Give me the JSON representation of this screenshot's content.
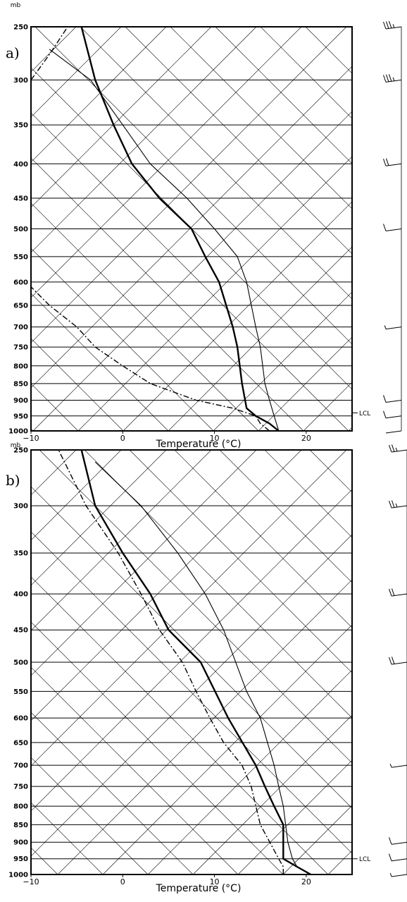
{
  "chart_data": [
    {
      "type": "line",
      "panel_label": "a)",
      "pressure_unit": "mb",
      "xlabel": "Temperature (°C)",
      "xlim": [
        -10,
        25
      ],
      "ylim": [
        1000,
        250
      ],
      "y_scale": "log",
      "x_ticks": [
        "−10",
        "0",
        "10",
        "20"
      ],
      "y_ticks": [
        "250",
        "300",
        "350",
        "400",
        "450",
        "500",
        "550",
        "600",
        "650",
        "700",
        "750",
        "800",
        "850",
        "900",
        "950",
        "1000"
      ],
      "lcl_label": "LCL",
      "lcl_pressure": 940,
      "series": [
        {
          "style": "thick-solid",
          "points": [
            [
              17,
              1000
            ],
            [
              16,
              975
            ],
            [
              14.5,
              950
            ],
            [
              13.5,
              925
            ],
            [
              13,
              850
            ],
            [
              12.5,
              750
            ],
            [
              12,
              700
            ],
            [
              10.5,
              600
            ],
            [
              9,
              550
            ],
            [
              7.5,
              500
            ],
            [
              4,
              450
            ],
            [
              1,
              400
            ],
            [
              -1,
              350
            ],
            [
              -3,
              300
            ],
            [
              -4.5,
              250
            ]
          ]
        },
        {
          "style": "thin-solid",
          "points": [
            [
              17,
              1000
            ],
            [
              16.5,
              950
            ],
            [
              16,
              900
            ],
            [
              15.5,
              850
            ],
            [
              15,
              750
            ],
            [
              14.5,
              700
            ],
            [
              13.5,
              600
            ],
            [
              12.5,
              550
            ],
            [
              10,
              500
            ],
            [
              7,
              450
            ],
            [
              3,
              400
            ],
            [
              0,
              350
            ],
            [
              -3.5,
              300
            ],
            [
              -8,
              270
            ]
          ]
        },
        {
          "style": "dash-dot",
          "points": [
            [
              16,
              1000
            ],
            [
              15,
              975
            ],
            [
              14.5,
              950
            ],
            [
              12,
              925
            ],
            [
              8,
              900
            ],
            [
              3,
              850
            ],
            [
              0,
              800
            ],
            [
              -3,
              750
            ],
            [
              -5,
              700
            ],
            [
              -8,
              650
            ],
            [
              -10,
              610
            ]
          ]
        },
        {
          "style": "dash-dot",
          "points": [
            [
              -10,
              300
            ],
            [
              -8,
              275
            ],
            [
              -6,
              250
            ]
          ]
        }
      ],
      "wind_barbs": [
        {
          "pressure": 250,
          "barbs": 3.5
        },
        {
          "pressure": 300,
          "barbs": 3.5
        },
        {
          "pressure": 400,
          "barbs": 2
        },
        {
          "pressure": 500,
          "barbs": 1
        },
        {
          "pressure": 700,
          "barbs": 0.5
        },
        {
          "pressure": 900,
          "barbs": 1
        },
        {
          "pressure": 950,
          "barbs": 1
        },
        {
          "pressure": 1000,
          "barbs": 0
        }
      ]
    },
    {
      "type": "line",
      "panel_label": "b)",
      "pressure_unit": "mb",
      "xlabel": "Temperature (°C)",
      "xlim": [
        -10,
        25
      ],
      "ylim": [
        1000,
        250
      ],
      "y_scale": "log",
      "x_ticks": [
        "−10",
        "0",
        "10",
        "20"
      ],
      "y_ticks": [
        "250",
        "300",
        "350",
        "400",
        "450",
        "500",
        "550",
        "600",
        "650",
        "700",
        "750",
        "800",
        "850",
        "900",
        "950",
        "1000"
      ],
      "lcl_label": "LCL",
      "lcl_pressure": 950,
      "series": [
        {
          "style": "thick-solid",
          "points": [
            [
              20.5,
              1000
            ],
            [
              19,
              975
            ],
            [
              17.5,
              950
            ],
            [
              17.5,
              900
            ],
            [
              17.5,
              850
            ],
            [
              16.5,
              800
            ],
            [
              15.5,
              750
            ],
            [
              14.5,
              700
            ],
            [
              11.5,
              600
            ],
            [
              8.5,
              500
            ],
            [
              5,
              450
            ],
            [
              3,
              400
            ],
            [
              0,
              350
            ],
            [
              -3,
              300
            ],
            [
              -4.5,
              250
            ]
          ]
        },
        {
          "style": "thin-solid",
          "points": [
            [
              20.5,
              1000
            ],
            [
              19,
              975
            ],
            [
              18.5,
              950
            ],
            [
              18,
              900
            ],
            [
              17.5,
              800
            ],
            [
              17,
              750
            ],
            [
              16.5,
              700
            ],
            [
              15,
              600
            ],
            [
              13.5,
              550
            ],
            [
              11,
              450
            ],
            [
              9,
              400
            ],
            [
              6,
              350
            ],
            [
              2,
              300
            ],
            [
              -3,
              260
            ]
          ]
        },
        {
          "style": "dash-dot",
          "points": [
            [
              17.5,
              1000
            ],
            [
              17.5,
              975
            ],
            [
              17,
              950
            ],
            [
              15,
              850
            ],
            [
              14,
              750
            ],
            [
              13,
              700
            ],
            [
              11,
              650
            ],
            [
              9.5,
              600
            ],
            [
              8,
              550
            ],
            [
              6.5,
              500
            ],
            [
              4,
              450
            ],
            [
              2,
              400
            ],
            [
              -0.5,
              350
            ],
            [
              -4,
              300
            ],
            [
              -7,
              250
            ]
          ]
        }
      ],
      "wind_barbs": [
        {
          "pressure": 250,
          "barbs": 2.5
        },
        {
          "pressure": 300,
          "barbs": 2.5
        },
        {
          "pressure": 400,
          "barbs": 2
        },
        {
          "pressure": 500,
          "barbs": 2
        },
        {
          "pressure": 700,
          "barbs": 0.5
        },
        {
          "pressure": 900,
          "barbs": 1
        },
        {
          "pressure": 950,
          "barbs": 1
        },
        {
          "pressure": 1000,
          "barbs": 0.5
        }
      ]
    }
  ]
}
